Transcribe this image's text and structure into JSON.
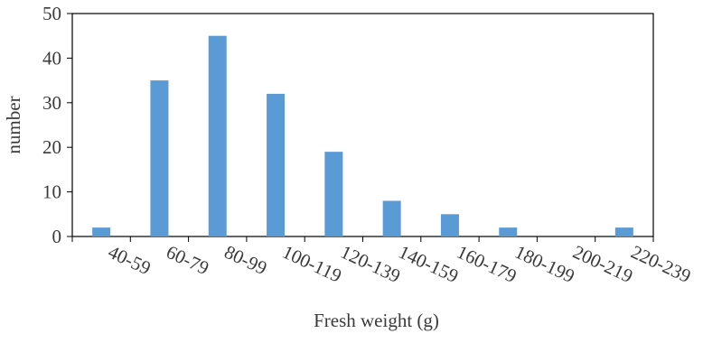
{
  "chart_data": {
    "type": "bar",
    "categories": [
      "40-59",
      "60-79",
      "80-99",
      "100-119",
      "120-139",
      "140-159",
      "160-179",
      "180-199",
      "200-219",
      "220-239"
    ],
    "values": [
      2,
      35,
      45,
      32,
      19,
      8,
      5,
      2,
      0,
      2
    ],
    "xlabel": "Fresh weight (g)",
    "ylabel": "number",
    "ylim": [
      0,
      50
    ],
    "yticks": [
      0,
      10,
      20,
      30,
      40,
      50
    ],
    "bar_color": "#5b9bd5",
    "grid": false,
    "legend": "none"
  }
}
